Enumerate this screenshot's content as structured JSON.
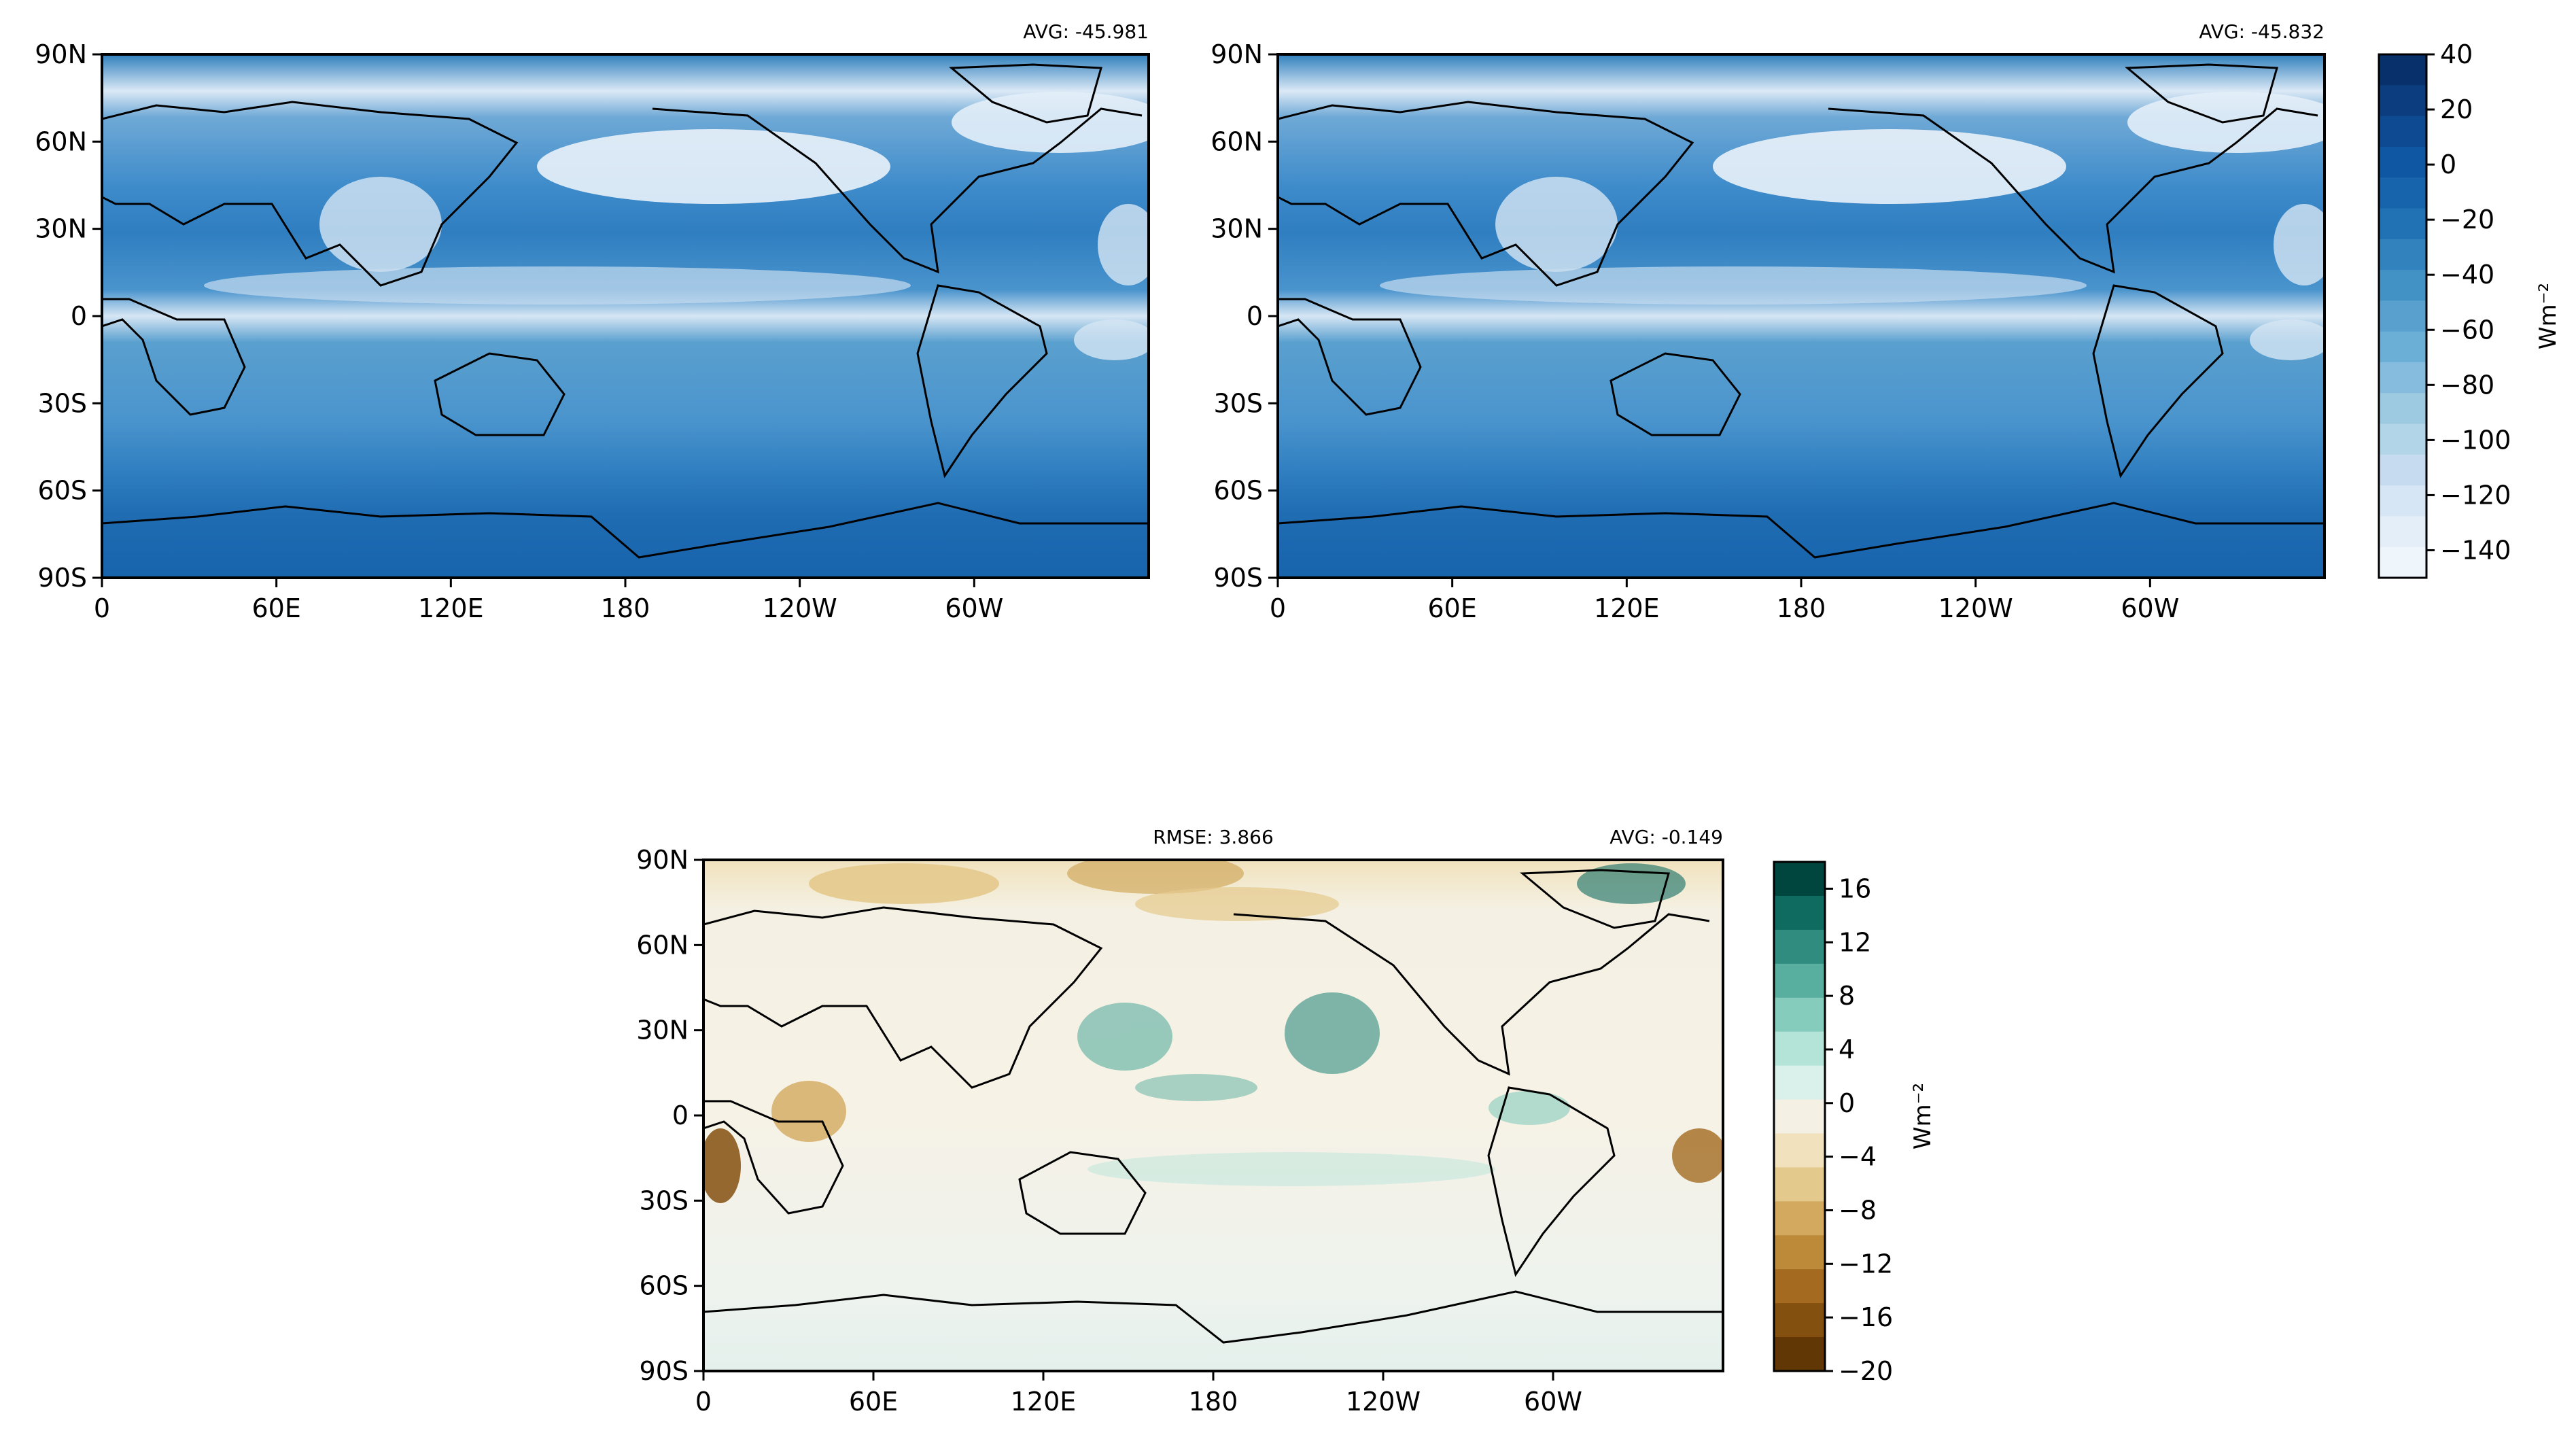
{
  "axes": {
    "lat_ticks": [
      "90N",
      "60N",
      "30N",
      "0",
      "30S",
      "60S",
      "90S"
    ],
    "lon_ticks": [
      "0",
      "60E",
      "120E",
      "180",
      "120W",
      "60W"
    ]
  },
  "panels": {
    "top_left": {
      "avg": "AVG: -45.981"
    },
    "top_right": {
      "avg": "AVG: -45.832"
    },
    "diff": {
      "rmse": "RMSE: 3.866",
      "avg": "AVG: -0.149"
    }
  },
  "colorbars": {
    "field": {
      "unit": "Wm⁻²",
      "ticks": [
        "40",
        "20",
        "0",
        "−20",
        "−40",
        "−60",
        "−80",
        "−100",
        "−120",
        "−140"
      ],
      "colors": [
        "#08306b",
        "#0b3d7f",
        "#0d4a92",
        "#0f57a3",
        "#1764ad",
        "#2171b5",
        "#3182bd",
        "#4292c6",
        "#5aa0cf",
        "#6baed6",
        "#86bcdd",
        "#9ecae1",
        "#b3d5e8",
        "#c6dbef",
        "#d6e6f4",
        "#e3eef8",
        "#eef5fb"
      ]
    },
    "diff": {
      "unit": "Wm⁻²",
      "ticks": [
        "16",
        "12",
        "8",
        "4",
        "0",
        "−4",
        "−8",
        "−12",
        "−16",
        "−20"
      ],
      "colors": [
        "#01463e",
        "#0f6b60",
        "#2f8c7f",
        "#58ae9f",
        "#85ccbd",
        "#b4e3d8",
        "#d9f0eb",
        "#f4f1e4",
        "#f1e2bd",
        "#e4c98c",
        "#d2a95e",
        "#bd8a3a",
        "#a36a20",
        "#84500f",
        "#613705"
      ]
    }
  },
  "chart_data": [
    {
      "type": "heatmap",
      "map": "global lat-lon filled contour",
      "lon_range": [
        0,
        360
      ],
      "lat_range": [
        -90,
        90
      ],
      "stat": "AVG: -45.981",
      "colorbar": {
        "min": -150,
        "max": 40,
        "step": 10,
        "label": "Wm⁻²"
      }
    },
    {
      "type": "heatmap",
      "map": "global lat-lon filled contour",
      "lon_range": [
        0,
        360
      ],
      "lat_range": [
        -90,
        90
      ],
      "stat": "AVG: -45.832",
      "colorbar": {
        "min": -150,
        "max": 40,
        "step": 10,
        "label": "Wm⁻²"
      }
    },
    {
      "type": "heatmap",
      "map": "global lat-lon filled contour (difference)",
      "lon_range": [
        0,
        360
      ],
      "lat_range": [
        -90,
        90
      ],
      "stats": [
        "RMSE: 3.866",
        "AVG: -0.149"
      ],
      "colorbar": {
        "min": -20,
        "max": 18,
        "step": 2,
        "label": "Wm⁻²"
      }
    }
  ]
}
